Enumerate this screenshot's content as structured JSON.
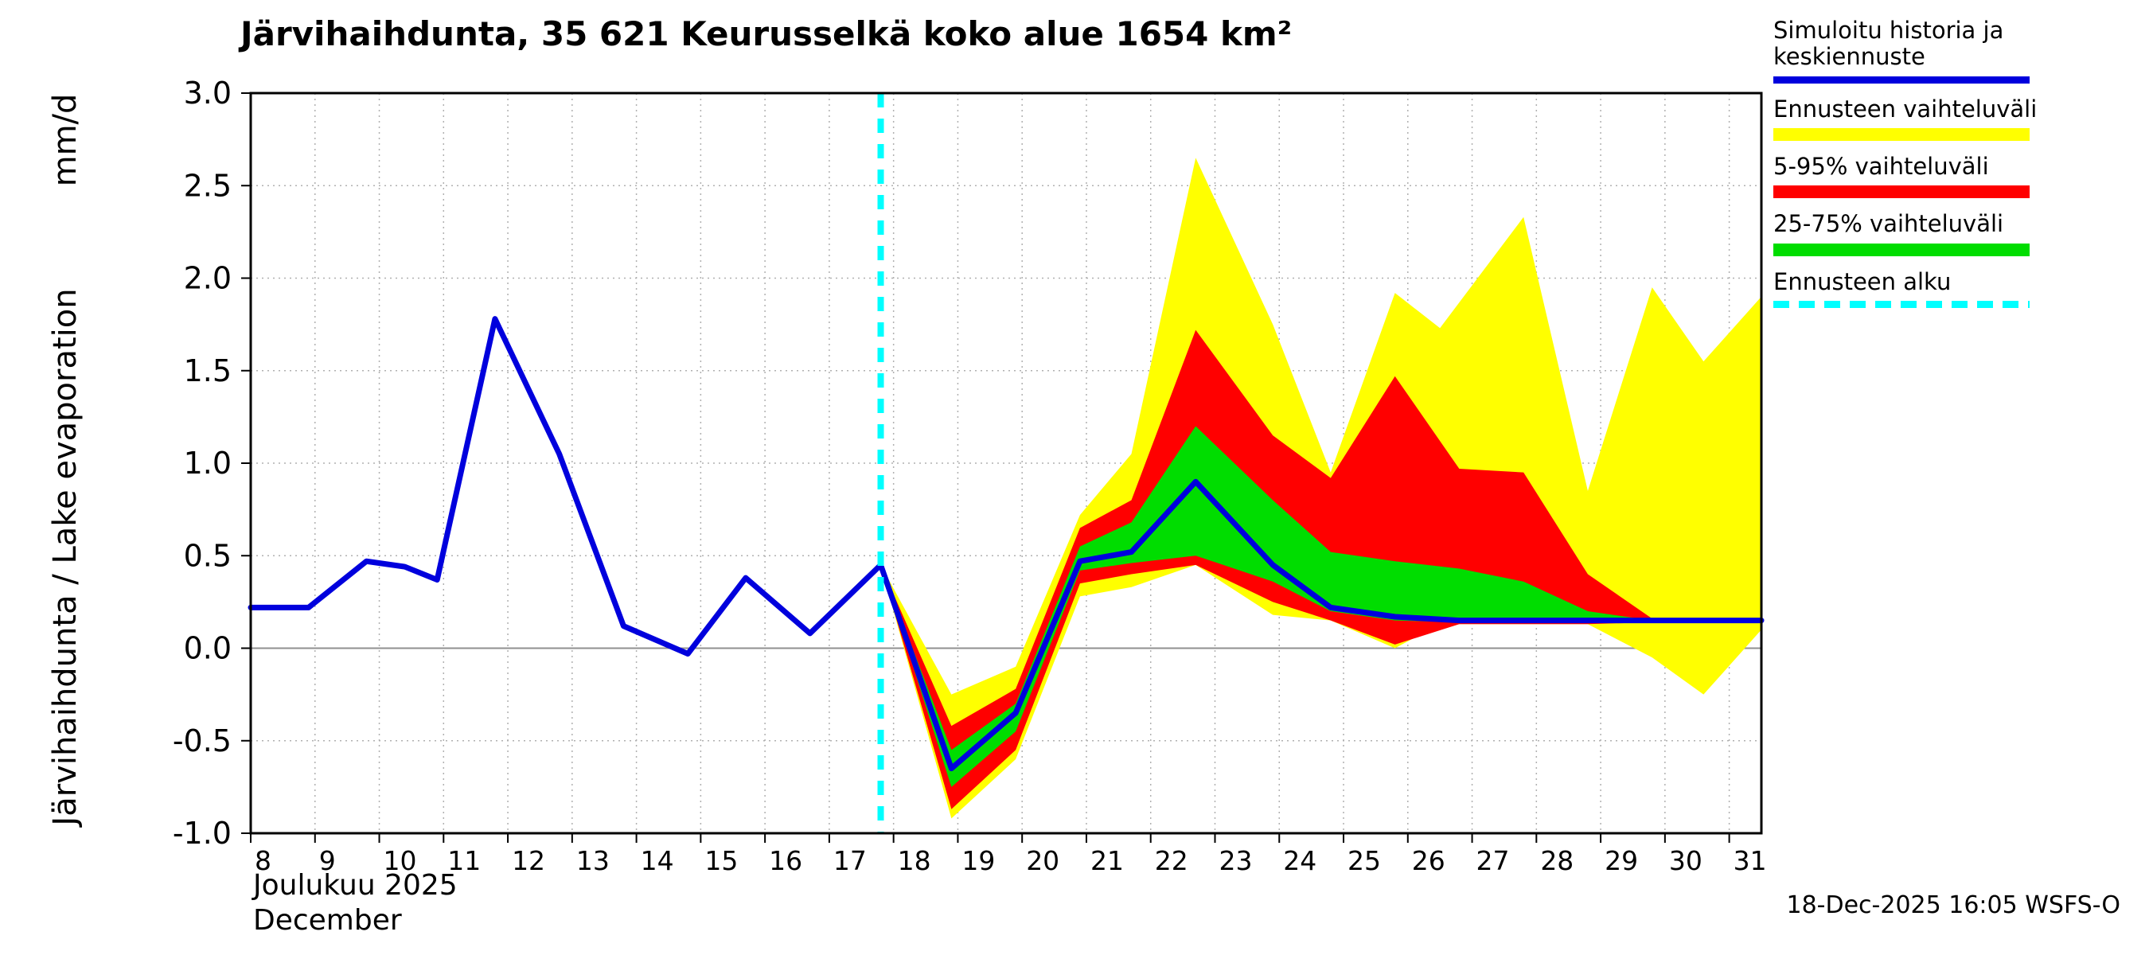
{
  "timestamp": "18-Dec-2025 16:05 WSFS-O",
  "chart_data": {
    "type": "line",
    "title": "Järvihaihdunta, 35 621 Keurusselkä koko alue 1654 km²",
    "ylabel": "Järvihaihdunta / Lake evaporation",
    "y_unit": "mm/d",
    "xlabel_fi": "Joulukuu 2025",
    "xlabel_en": "December",
    "x_range": [
      8,
      31.5
    ],
    "y_range": [
      -1.0,
      3.0
    ],
    "x_ticks": [
      8,
      9,
      10,
      11,
      12,
      13,
      14,
      15,
      16,
      17,
      18,
      19,
      20,
      21,
      22,
      23,
      24,
      25,
      26,
      27,
      28,
      29,
      30,
      31
    ],
    "y_ticks": [
      -1.0,
      -0.5,
      0.0,
      0.5,
      1.0,
      1.5,
      2.0,
      2.5,
      3.0
    ],
    "grid": true,
    "forecast_start_x": 17.8,
    "colors": {
      "mean": "#0000dd",
      "band_full": "#ffff00",
      "band_5_95": "#ff0000",
      "band_25_75": "#00dd00",
      "forecast_start": "#00ffff",
      "grid": "#b0b0b0",
      "zero_line": "#909090"
    },
    "legend": [
      {
        "label": "Simuloitu historia ja keskiennuste",
        "type": "line",
        "color": "#0000dd"
      },
      {
        "label": "Ennusteen vaihteluväli",
        "type": "band",
        "color": "#ffff00"
      },
      {
        "label": "5-95% vaihteluväli",
        "type": "band",
        "color": "#ff0000"
      },
      {
        "label": "25-75% vaihteluväli",
        "type": "band",
        "color": "#00dd00"
      },
      {
        "label": "Ennusteen alku",
        "type": "dashed",
        "color": "#00ffff"
      }
    ],
    "series": {
      "history": {
        "x": [
          8.0,
          8.9,
          9.8,
          10.4,
          10.9,
          11.8,
          12.8,
          13.8,
          14.8,
          15.7,
          16.7,
          17.8
        ],
        "y": [
          0.22,
          0.22,
          0.47,
          0.44,
          0.37,
          1.78,
          1.05,
          0.12,
          -0.03,
          0.38,
          0.08,
          0.45
        ]
      },
      "forecast_mean": {
        "x": [
          17.8,
          18.9,
          19.9,
          20.9,
          21.7,
          22.7,
          23.9,
          24.8,
          25.8,
          26.8,
          27.8,
          28.8,
          29.8,
          31.5
        ],
        "y": [
          0.45,
          -0.65,
          -0.35,
          0.47,
          0.52,
          0.9,
          0.45,
          0.22,
          0.17,
          0.15,
          0.15,
          0.15,
          0.15,
          0.15
        ]
      },
      "band_full": {
        "x": [
          17.8,
          18.9,
          19.9,
          20.9,
          21.7,
          22.7,
          23.9,
          24.8,
          25.8,
          26.5,
          27.8,
          28.8,
          29.8,
          30.6,
          31.5
        ],
        "upper": [
          0.45,
          -0.25,
          -0.1,
          0.72,
          1.05,
          2.65,
          1.75,
          0.95,
          1.92,
          1.73,
          2.33,
          0.85,
          1.95,
          1.55,
          1.9
        ],
        "lower": [
          0.45,
          -0.92,
          -0.6,
          0.28,
          0.33,
          0.45,
          0.18,
          0.15,
          0.0,
          0.13,
          0.13,
          0.13,
          -0.05,
          -0.25,
          0.1
        ]
      },
      "band_5_95": {
        "x": [
          17.8,
          18.9,
          19.9,
          20.9,
          21.7,
          22.7,
          23.9,
          24.8,
          25.8,
          26.8,
          27.8,
          28.8,
          29.8,
          31.5
        ],
        "upper": [
          0.45,
          -0.42,
          -0.22,
          0.65,
          0.8,
          1.72,
          1.15,
          0.92,
          1.47,
          0.97,
          0.95,
          0.4,
          0.16,
          0.16
        ],
        "lower": [
          0.45,
          -0.87,
          -0.55,
          0.35,
          0.4,
          0.45,
          0.25,
          0.15,
          0.02,
          0.13,
          0.13,
          0.13,
          0.14,
          0.14
        ]
      },
      "band_25_75": {
        "x": [
          17.8,
          18.9,
          19.9,
          20.9,
          21.7,
          22.7,
          23.9,
          24.8,
          25.8,
          26.8,
          27.8,
          28.8,
          29.8,
          31.5
        ],
        "upper": [
          0.45,
          -0.55,
          -0.3,
          0.55,
          0.68,
          1.2,
          0.8,
          0.52,
          0.47,
          0.43,
          0.36,
          0.2,
          0.15,
          0.15
        ],
        "lower": [
          0.45,
          -0.75,
          -0.45,
          0.42,
          0.46,
          0.5,
          0.36,
          0.2,
          0.15,
          0.14,
          0.14,
          0.14,
          0.14,
          0.14
        ]
      }
    }
  }
}
